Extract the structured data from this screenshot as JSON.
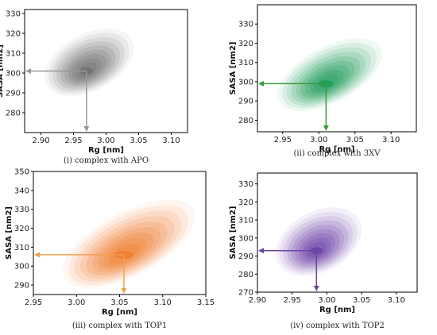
{
  "chart_data": [
    {
      "type": "density-contour",
      "caption": "(i) complex with APO",
      "xlabel": "Rg [nm]",
      "ylabel": "SASA [nm2]",
      "xlim": [
        2.875,
        3.125
      ],
      "ylim": [
        270,
        332
      ],
      "xticks": [
        "2.90",
        "2.95",
        "3.00",
        "3.05",
        "3.10"
      ],
      "yticks": [
        "280",
        "290",
        "300",
        "310",
        "320",
        "330"
      ],
      "peak": {
        "x": 2.97,
        "y": 301
      },
      "spread": {
        "x": 0.028,
        "y": 6
      },
      "color": "#6b6b6b",
      "arrow_color": "#999999"
    },
    {
      "type": "density-contour",
      "caption": "(ii) complex with 3XV",
      "xlabel": "Rg [nm]",
      "ylabel": "SASA [nm2]",
      "xlim": [
        2.915,
        3.135
      ],
      "ylim": [
        274,
        340
      ],
      "xticks": [
        "2.95",
        "3.00",
        "3.05",
        "3.10"
      ],
      "yticks": [
        "280",
        "290",
        "300",
        "310",
        "320",
        "330"
      ],
      "peak": {
        "x": 3.01,
        "y": 299
      },
      "spread": {
        "x": 0.03,
        "y": 6
      },
      "color": "#1a9a55",
      "arrow_color": "#3a9a3a"
    },
    {
      "type": "density-contour",
      "caption": "(iii) complex with TOP1",
      "xlabel": "Rg [nm]",
      "ylabel": "SASA [nm2]",
      "xlim": [
        2.95,
        3.15
      ],
      "ylim": [
        285,
        350
      ],
      "xticks": [
        "2.95",
        "3.00",
        "3.05",
        "3.10",
        "3.15"
      ],
      "yticks": [
        "290",
        "300",
        "310",
        "320",
        "330",
        "340",
        "350"
      ],
      "peak": {
        "x": 3.055,
        "y": 306
      },
      "spread": {
        "x": 0.032,
        "y": 7
      },
      "color": "#f07a2a",
      "arrow_color": "#f0a050"
    },
    {
      "type": "density-contour",
      "caption": "(iv) complex with TOP2",
      "xlabel": "Rg [nm]",
      "ylabel": "SASA [nm2]",
      "xlim": [
        2.9,
        3.13
      ],
      "ylim": [
        270,
        336
      ],
      "xticks": [
        "2.90",
        "2.95",
        "3.00",
        "3.05",
        "3.10"
      ],
      "yticks": [
        "270",
        "280",
        "290",
        "300",
        "310",
        "320",
        "330"
      ],
      "peak": {
        "x": 2.985,
        "y": 293
      },
      "spread": {
        "x": 0.025,
        "y": 7
      },
      "color": "#6a3fa8",
      "arrow_color": "#6a45a0"
    }
  ]
}
